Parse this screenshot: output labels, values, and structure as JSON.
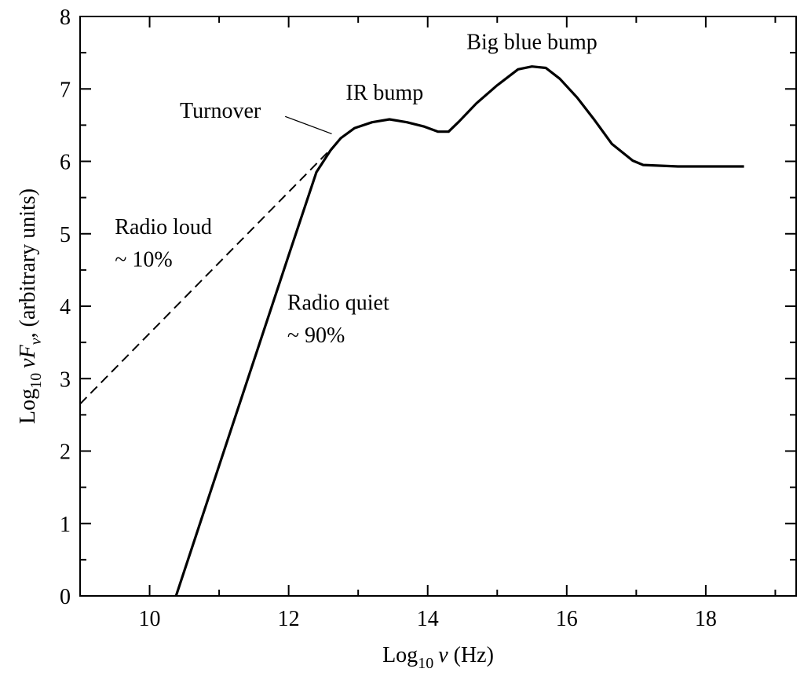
{
  "chart_data": {
    "type": "line",
    "title": "",
    "xlabel": {
      "prefix": "Log",
      "sub": "10",
      "symbol": "ν",
      "unit": " (Hz)"
    },
    "ylabel": {
      "prefix": "Log",
      "sub": "10",
      "symbol": "νF",
      "symbol_sub": "ν",
      "unit": ", (arbitrary units)"
    },
    "xlim": [
      9,
      19.3
    ],
    "ylim": [
      0,
      8
    ],
    "x_ticks": [
      10,
      12,
      14,
      16,
      18
    ],
    "y_ticks": [
      0,
      1,
      2,
      3,
      4,
      5,
      6,
      7,
      8
    ],
    "x_tick_labels": [
      "10",
      "12",
      "14",
      "16",
      "18"
    ],
    "y_tick_labels": [
      "0",
      "1",
      "2",
      "3",
      "4",
      "5",
      "6",
      "7",
      "8"
    ],
    "grid": false,
    "series": [
      {
        "style": "solid",
        "x": [
          10.38,
          12.0,
          12.4,
          12.6,
          12.75,
          12.95,
          13.2,
          13.45,
          13.7,
          13.95,
          14.15,
          14.3,
          14.45,
          14.7,
          15.0,
          15.3,
          15.5,
          15.7,
          15.9,
          16.15,
          16.4,
          16.65,
          16.95,
          17.1,
          17.6,
          18.0,
          18.55
        ],
        "y": [
          0.0,
          4.7,
          5.85,
          6.15,
          6.32,
          6.46,
          6.54,
          6.58,
          6.54,
          6.48,
          6.41,
          6.41,
          6.55,
          6.8,
          7.05,
          7.27,
          7.31,
          7.29,
          7.14,
          6.88,
          6.57,
          6.24,
          6.01,
          5.95,
          5.93,
          5.93,
          5.93
        ]
      },
      {
        "style": "dashed",
        "x": [
          9.0,
          12.72
        ],
        "y": [
          2.65,
          6.28
        ]
      }
    ],
    "annotations": [
      {
        "text": "Big blue bump",
        "x": 15.5,
        "y": 7.55,
        "anchor": "middle"
      },
      {
        "text": "IR bump",
        "x": 13.38,
        "y": 6.85,
        "anchor": "middle"
      },
      {
        "text": "Turnover",
        "x": 11.6,
        "y": 6.6,
        "anchor": "end"
      },
      {
        "text": "Radio loud",
        "x": 9.5,
        "y": 5.0,
        "anchor": "start"
      },
      {
        "text": "~ 10%",
        "x": 9.5,
        "y": 4.55,
        "anchor": "start"
      },
      {
        "text": "Radio quiet",
        "x": 11.98,
        "y": 3.95,
        "anchor": "start"
      },
      {
        "text": "~ 90%",
        "x": 11.98,
        "y": 3.5,
        "anchor": "start"
      }
    ],
    "leader_line": {
      "x": [
        11.95,
        12.62
      ],
      "y": [
        6.62,
        6.38
      ]
    }
  }
}
